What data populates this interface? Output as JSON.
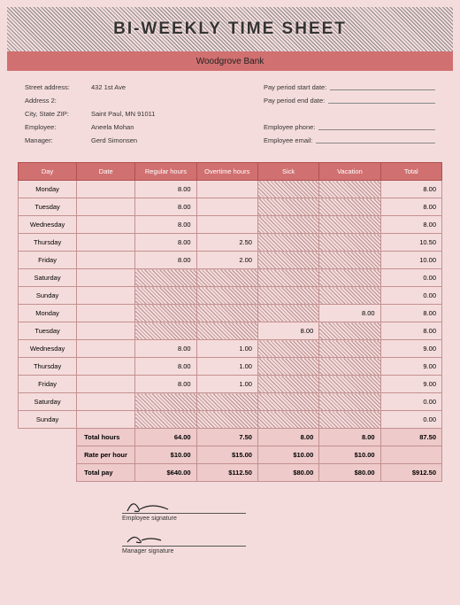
{
  "title": "BI-WEEKLY TIME SHEET",
  "company": "Woodgrove Bank",
  "info": {
    "street_label": "Street address:",
    "street": "432 1st Ave",
    "addr2_label": "Address 2:",
    "addr2": "",
    "city_label": "City, State ZIP:",
    "city": "Saint Paul, MN 91011",
    "employee_label": "Employee:",
    "employee": "Aneela Mohan",
    "manager_label": "Manager:",
    "manager": "Gerd Simonsen",
    "period_start_label": "Pay period start date:",
    "period_end_label": "Pay period end date:",
    "emp_phone_label": "Employee phone:",
    "emp_email_label": "Employee email:"
  },
  "headers": {
    "day": "Day",
    "date": "Date",
    "regular": "Regular hours",
    "overtime": "Overtime hours",
    "sick": "Sick",
    "vacation": "Vacation",
    "total": "Total"
  },
  "rows": [
    {
      "day": "Monday",
      "reg": "8.00",
      "ot": "",
      "sick": "H",
      "vac": "H",
      "tot": "8.00"
    },
    {
      "day": "Tuesday",
      "reg": "8.00",
      "ot": "",
      "sick": "H",
      "vac": "H",
      "tot": "8.00"
    },
    {
      "day": "Wednesday",
      "reg": "8.00",
      "ot": "",
      "sick": "H",
      "vac": "H",
      "tot": "8.00"
    },
    {
      "day": "Thursday",
      "reg": "8.00",
      "ot": "2.50",
      "sick": "H",
      "vac": "H",
      "tot": "10.50"
    },
    {
      "day": "Friday",
      "reg": "8.00",
      "ot": "2.00",
      "sick": "H",
      "vac": "H",
      "tot": "10.00"
    },
    {
      "day": "Saturday",
      "reg": "H",
      "ot": "H",
      "sick": "H",
      "vac": "H",
      "tot": "0.00"
    },
    {
      "day": "Sunday",
      "reg": "H",
      "ot": "H",
      "sick": "H",
      "vac": "H",
      "tot": "0.00"
    },
    {
      "day": "Monday",
      "reg": "H",
      "ot": "H",
      "sick": "H",
      "vac": "8.00",
      "tot": "8.00"
    },
    {
      "day": "Tuesday",
      "reg": "H",
      "ot": "H",
      "sick": "8.00",
      "vac": "H",
      "tot": "8.00"
    },
    {
      "day": "Wednesday",
      "reg": "8.00",
      "ot": "1.00",
      "sick": "H",
      "vac": "H",
      "tot": "9.00"
    },
    {
      "day": "Thursday",
      "reg": "8.00",
      "ot": "1.00",
      "sick": "H",
      "vac": "H",
      "tot": "9.00"
    },
    {
      "day": "Friday",
      "reg": "8.00",
      "ot": "1.00",
      "sick": "H",
      "vac": "H",
      "tot": "9.00"
    },
    {
      "day": "Saturday",
      "reg": "H",
      "ot": "H",
      "sick": "H",
      "vac": "H",
      "tot": "0.00"
    },
    {
      "day": "Sunday",
      "reg": "H",
      "ot": "H",
      "sick": "H",
      "vac": "H",
      "tot": "0.00"
    }
  ],
  "totals": {
    "hours_label": "Total hours",
    "hours": {
      "reg": "64.00",
      "ot": "7.50",
      "sick": "8.00",
      "vac": "8.00",
      "tot": "87.50"
    },
    "rate_label": "Rate per hour",
    "rate": {
      "reg": "$10.00",
      "ot": "$15.00",
      "sick": "$10.00",
      "vac": "$10.00",
      "tot": ""
    },
    "pay_label": "Total pay",
    "pay": {
      "reg": "$640.00",
      "ot": "$112.50",
      "sick": "$80.00",
      "vac": "$80.00",
      "tot": "$912.50"
    }
  },
  "sigs": {
    "employee": "Employee signature",
    "manager": "Manager signature"
  }
}
